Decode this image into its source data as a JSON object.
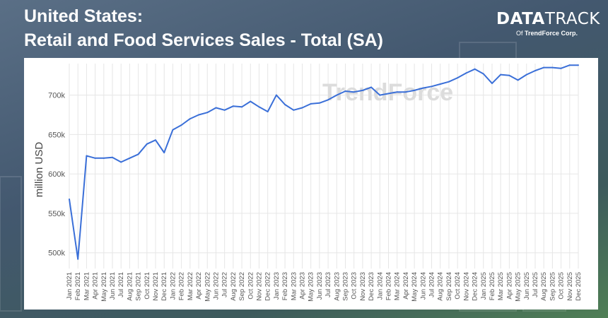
{
  "header": {
    "title_line1": "United States:",
    "title_line2": "Retail and Food Services Sales - Total (SA)"
  },
  "logo": {
    "brand_bold": "DATA",
    "brand_light": "TRACK",
    "sub_prefix": "Of",
    "sub_company": "TrendForce Corp."
  },
  "watermark": {
    "text": "TrendForce"
  },
  "colors": {
    "line": "#3a6fd8",
    "grid": "#e6e6e6",
    "axis_text": "#555555",
    "panel": "#ffffff"
  },
  "chart_data": {
    "type": "line",
    "title": "",
    "xlabel": "",
    "ylabel": "million USD",
    "ylim": [
      480000,
      740000
    ],
    "yticks": [
      500000,
      550000,
      600000,
      650000,
      700000
    ],
    "yticklabels": [
      "500k",
      "550k",
      "600k",
      "650k",
      "700k"
    ],
    "grid": true,
    "x": [
      "Jan 2021",
      "Feb 2021",
      "Mar 2021",
      "Apr 2021",
      "May 2021",
      "Jun 2021",
      "Jul 2021",
      "Aug 2021",
      "Sep 2021",
      "Oct 2021",
      "Nov 2021",
      "Dec 2021",
      "Jan 2022",
      "Feb 2022",
      "Mar 2022",
      "Apr 2022",
      "May 2022",
      "Jun 2022",
      "Jul 2022",
      "Aug 2022",
      "Sep 2022",
      "Oct 2022",
      "Nov 2022",
      "Dec 2022",
      "Jan 2023",
      "Feb 2023",
      "Mar 2023",
      "Apr 2023",
      "May 2023",
      "Jun 2023",
      "Jul 2023",
      "Aug 2023",
      "Sep 2023",
      "Oct 2023",
      "Nov 2023",
      "Dec 2023",
      "Jan 2024",
      "Feb 2024",
      "Mar 2024",
      "Apr 2024",
      "May 2024",
      "Jun 2024",
      "Jul 2024",
      "Aug 2024",
      "Sep 2024",
      "Oct 2024",
      "Nov 2024",
      "Dec 2024",
      "Jan 2025",
      "Feb 2025",
      "Mar 2025",
      "Apr 2025",
      "May 2025",
      "Jun 2025",
      "Jul 2025",
      "Aug 2025",
      "Sep 2025",
      "Oct 2025",
      "Nov 2025",
      "Dec 2025"
    ],
    "series": [
      {
        "values": [
          568000,
          492000,
          623000,
          620000,
          620000,
          621000,
          615000,
          620000,
          625000,
          638000,
          643000,
          627000,
          656000,
          662000,
          670000,
          675000,
          678000,
          684000,
          681000,
          686000,
          685000,
          692000,
          685000,
          679000,
          700000,
          688000,
          681000,
          684000,
          689000,
          690000,
          694000,
          700000,
          705000,
          704000,
          706000,
          710000,
          700000,
          702000,
          704000,
          704000,
          706000,
          709000,
          711000,
          714000,
          717000,
          722000,
          728000,
          733000,
          727000,
          715000,
          726000,
          725000,
          719000,
          726000,
          731000,
          735000,
          735000,
          734000,
          738000,
          738000
        ]
      }
    ]
  }
}
